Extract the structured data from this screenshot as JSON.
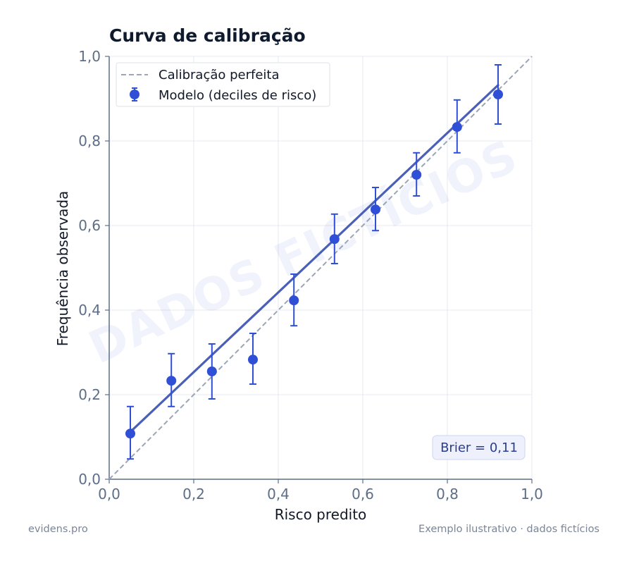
{
  "chart_data": {
    "type": "scatter",
    "title": "Curva de calibração",
    "xlabel": "Risco predito",
    "ylabel": "Frequência observada",
    "xlim": [
      0,
      1
    ],
    "ylim": [
      0,
      1
    ],
    "xticks": [
      "0,0",
      "0,2",
      "0,4",
      "0,6",
      "0,8",
      "1,0"
    ],
    "yticks": [
      "0,0",
      "0,2",
      "0,4",
      "0,6",
      "0,8",
      "1,0"
    ],
    "tick_values": [
      0,
      0.2,
      0.4,
      0.6,
      0.8,
      1.0
    ],
    "grid": true,
    "legend_position": "top-left",
    "series": [
      {
        "name": "Calibração perfeita",
        "kind": "dashed-line",
        "x": [
          0,
          1
        ],
        "y": [
          0,
          1
        ],
        "color": "#9aa5b8"
      },
      {
        "name": "Modelo (deciles de risco)",
        "kind": "points-errorbars",
        "color": "#2f4fd6",
        "x": [
          0.05,
          0.147,
          0.243,
          0.34,
          0.437,
          0.533,
          0.63,
          0.727,
          0.823,
          0.92
        ],
        "y": [
          0.108,
          0.233,
          0.255,
          0.283,
          0.423,
          0.568,
          0.638,
          0.72,
          0.833,
          0.91
        ],
        "y_lower": [
          0.048,
          0.172,
          0.19,
          0.225,
          0.363,
          0.51,
          0.588,
          0.67,
          0.772,
          0.84
        ],
        "y_upper": [
          0.172,
          0.297,
          0.32,
          0.345,
          0.485,
          0.627,
          0.69,
          0.772,
          0.897,
          0.98
        ]
      },
      {
        "kind": "fit-line",
        "color": "#4a5fb8",
        "x": [
          0.05,
          0.92
        ],
        "y": [
          0.112,
          0.932
        ]
      }
    ],
    "annotation": "Brier = 0,11",
    "watermark": "DADOS FICTÍCIOS"
  },
  "footer": {
    "left": "evidens.pro",
    "right": "Exemplo ilustrativo · dados fictícios"
  }
}
